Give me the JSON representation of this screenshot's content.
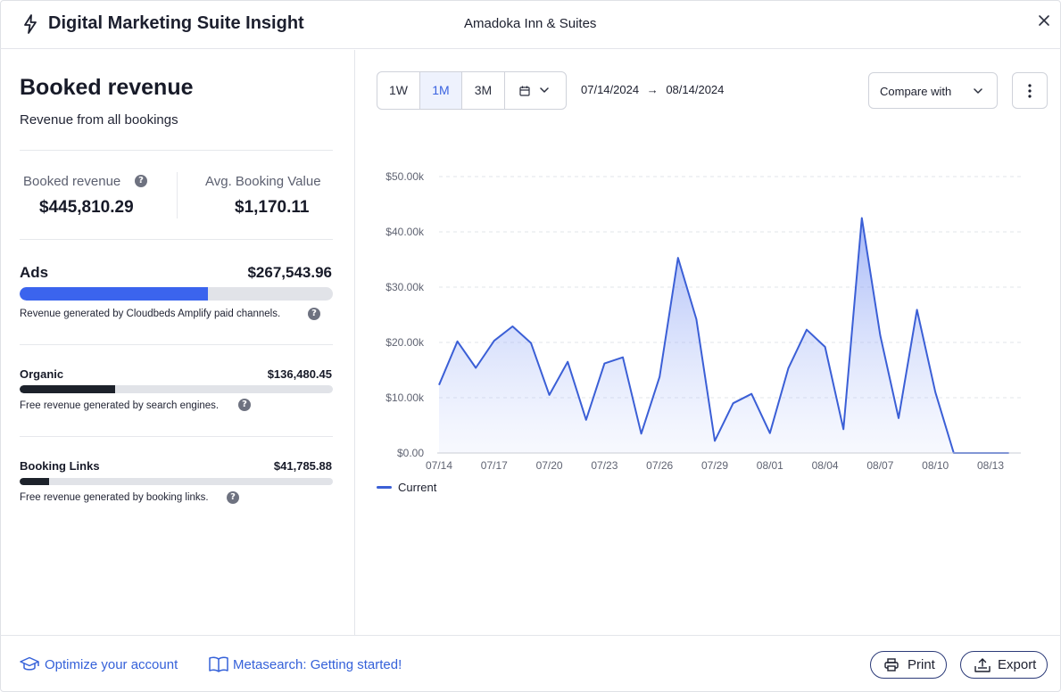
{
  "header": {
    "app_title": "Digital Marketing Suite Insight",
    "property_name": "Amadoka Inn & Suites"
  },
  "left": {
    "title": "Booked revenue",
    "subtitle": "Revenue from all bookings",
    "kpis": [
      {
        "label": "Booked revenue",
        "value": "$445,810.29",
        "has_help": true
      },
      {
        "label": "Avg. Booking Value",
        "value": "$1,170.11",
        "has_help": false
      }
    ],
    "channels": [
      {
        "name": "Ads",
        "value": "$267,543.96",
        "share": 0.6,
        "color": "#3b64ee",
        "description": "Revenue generated by Cloudbeds Amplify paid channels."
      },
      {
        "name": "Organic",
        "value": "$136,480.45",
        "share": 0.306,
        "color": "#1d222b",
        "description": "Free revenue generated by search engines."
      },
      {
        "name": "Booking Links",
        "value": "$41,785.88",
        "share": 0.094,
        "color": "#1d222b",
        "description": "Free revenue generated by booking links."
      }
    ]
  },
  "toolbar": {
    "ranges": [
      "1W",
      "1M",
      "3M"
    ],
    "active_range": "1M",
    "calendar_icon": "calendar-icon",
    "date_from": "07/14/2024",
    "date_arrow": "→",
    "date_to": "08/14/2024",
    "compare_label": "Compare with"
  },
  "chart_data": {
    "type": "area",
    "xlabel": "",
    "ylabel": "",
    "y_ticks": [
      "$0.00",
      "$10.00k",
      "$20.00k",
      "$30.00k",
      "$40.00k",
      "$50.00k"
    ],
    "ylim": [
      0,
      50000
    ],
    "x_tick_labels": [
      "07/14",
      "07/17",
      "07/20",
      "07/23",
      "07/26",
      "07/29",
      "08/01",
      "08/04",
      "08/07",
      "08/10",
      "08/13"
    ],
    "x": [
      "07/14",
      "07/15",
      "07/16",
      "07/17",
      "07/18",
      "07/19",
      "07/20",
      "07/21",
      "07/22",
      "07/23",
      "07/24",
      "07/25",
      "07/26",
      "07/27",
      "07/28",
      "07/29",
      "07/30",
      "07/31",
      "08/01",
      "08/02",
      "08/03",
      "08/04",
      "08/05",
      "08/06",
      "08/07",
      "08/08",
      "08/09",
      "08/10",
      "08/11",
      "08/12",
      "08/13",
      "08/14"
    ],
    "series": [
      {
        "name": "Current",
        "color": "#3b5fd6",
        "values": [
          12300,
          20200,
          15400,
          20300,
          22900,
          19900,
          10500,
          16500,
          6000,
          16200,
          17300,
          3500,
          13800,
          35300,
          24200,
          2200,
          9000,
          10700,
          3600,
          15300,
          22300,
          19200,
          4300,
          42500,
          21300,
          6300,
          25900,
          11000,
          0,
          0,
          0,
          0
        ]
      }
    ],
    "grid": true,
    "legend": "bottom-left"
  },
  "footer": {
    "links": [
      {
        "label": "Optimize your account",
        "icon": "graduation-cap-icon"
      },
      {
        "label": "Metasearch: Getting started!",
        "icon": "open-book-icon"
      }
    ],
    "print_label": "Print",
    "export_label": "Export"
  }
}
